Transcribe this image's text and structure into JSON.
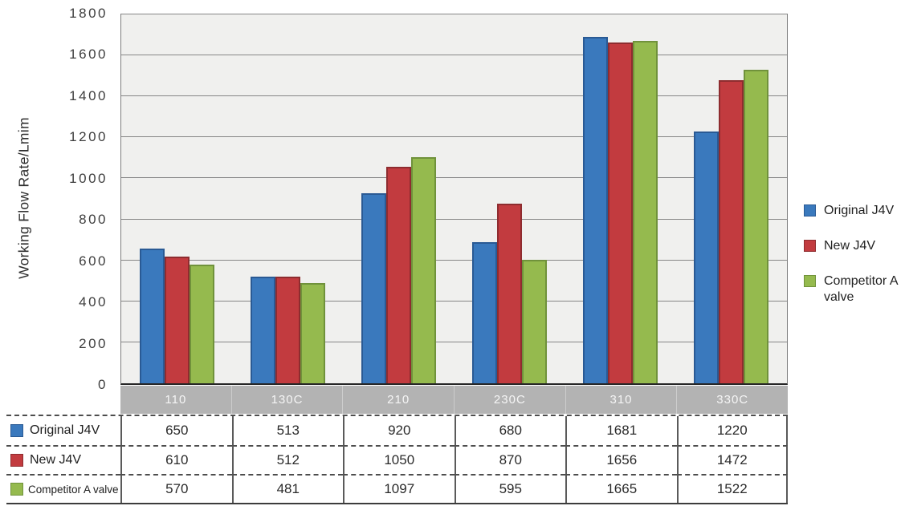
{
  "chart_data": {
    "type": "bar",
    "title": "",
    "ylabel": "Working Flow Rate/Lmim",
    "xlabel": "",
    "ylim": [
      0,
      1800
    ],
    "ytick_step": 200,
    "grid": true,
    "legend_position": "right",
    "plot_background": "#f0f0ee",
    "gridline_color": "#868686",
    "category_strip": {
      "background": "#b3b3b3",
      "text_color": "#f5f5f5"
    },
    "categories": [
      "110",
      "130C",
      "210",
      "230C",
      "310",
      "330C"
    ],
    "series": [
      {
        "name": "Original J4V",
        "color": "#3a79bd",
        "border_color": "#2a5a94",
        "values": [
          650,
          513,
          920,
          680,
          1681,
          1220
        ]
      },
      {
        "name": "New J4V",
        "color": "#c23b3f",
        "border_color": "#8e2c2f",
        "values": [
          610,
          512,
          1050,
          870,
          1656,
          1472
        ]
      },
      {
        "name": "Competitor A valve",
        "color": "#95ba4e",
        "border_color": "#70923b",
        "values": [
          570,
          481,
          1097,
          595,
          1665,
          1522
        ]
      }
    ]
  }
}
